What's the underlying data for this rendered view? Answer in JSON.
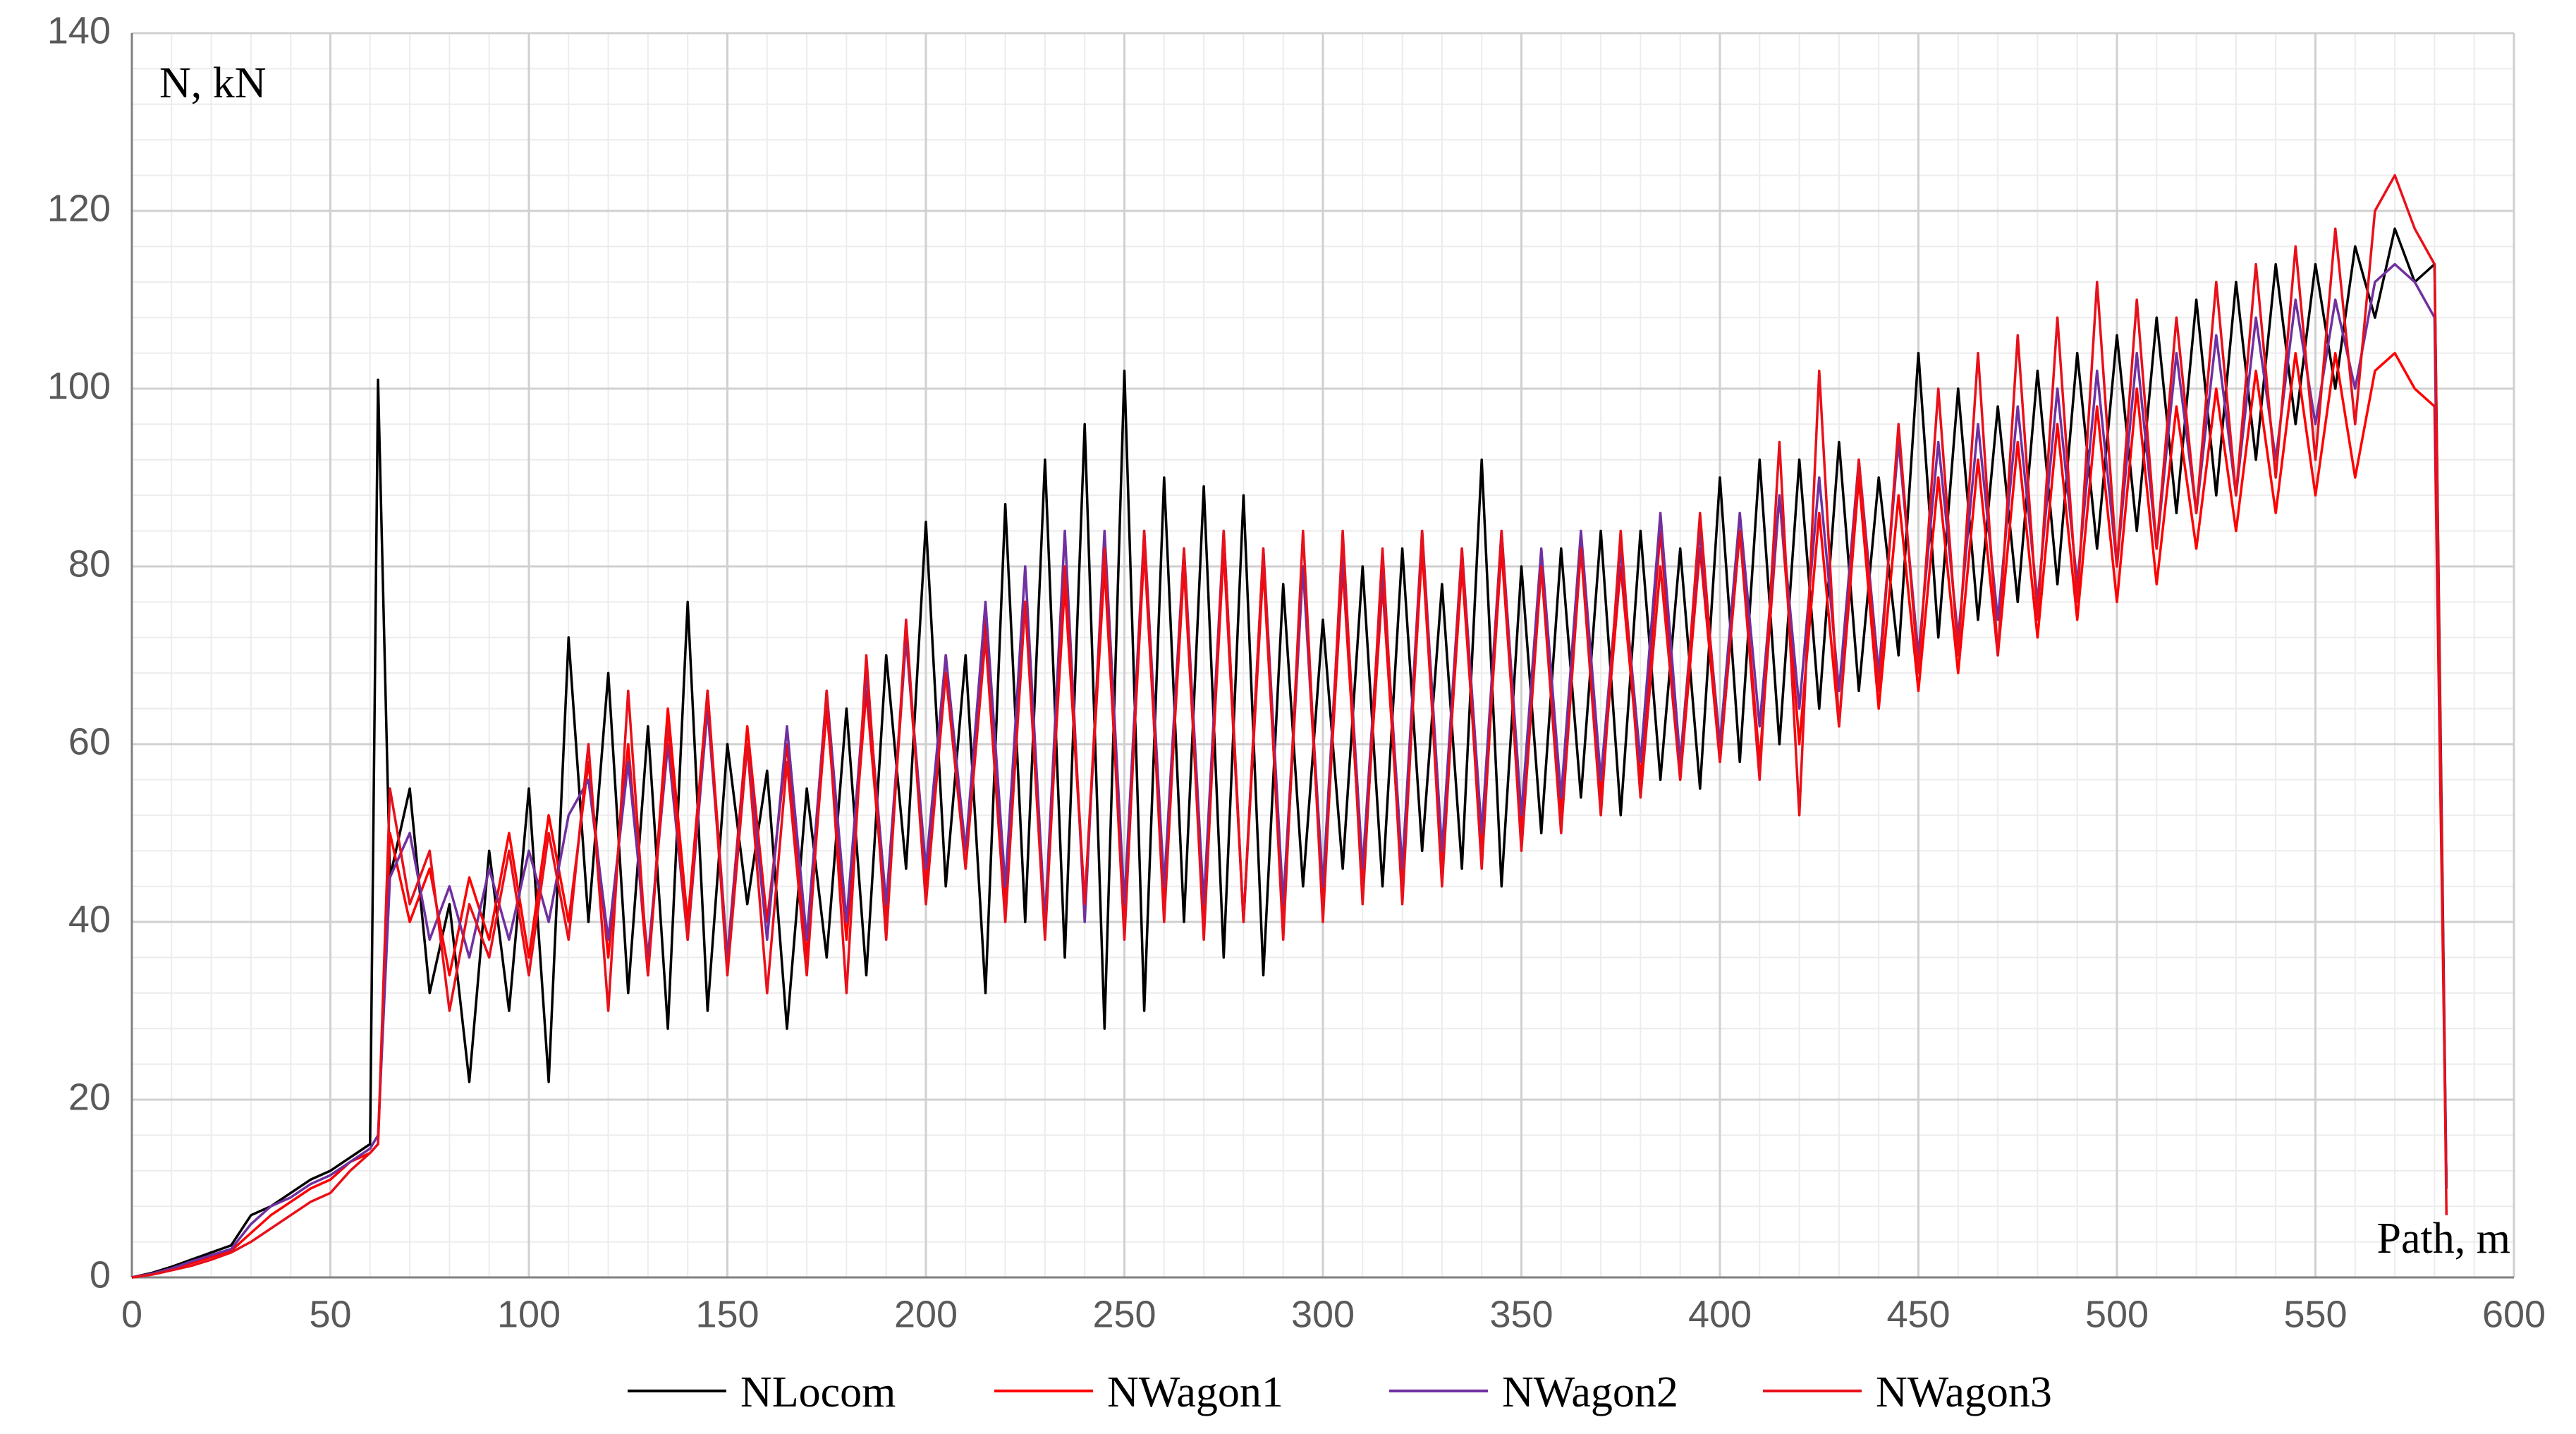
{
  "chart_data": {
    "type": "line",
    "y_label": "N, kN",
    "x_label": "Path, m",
    "x": [
      0,
      5,
      10,
      15,
      20,
      25,
      30,
      35,
      40,
      45,
      50,
      55,
      60,
      62,
      65,
      70,
      75,
      80,
      85,
      90,
      95,
      100,
      105,
      110,
      115,
      120,
      125,
      130,
      135,
      140,
      145,
      150,
      155,
      160,
      165,
      170,
      175,
      180,
      185,
      190,
      195,
      200,
      205,
      210,
      215,
      220,
      225,
      230,
      235,
      240,
      245,
      250,
      255,
      260,
      265,
      270,
      275,
      280,
      285,
      290,
      295,
      300,
      305,
      310,
      315,
      320,
      325,
      330,
      335,
      340,
      345,
      350,
      355,
      360,
      365,
      370,
      375,
      380,
      385,
      390,
      395,
      400,
      405,
      410,
      415,
      420,
      425,
      430,
      435,
      440,
      445,
      450,
      455,
      460,
      465,
      470,
      475,
      480,
      485,
      490,
      495,
      500,
      505,
      510,
      515,
      520,
      525,
      530,
      535,
      540,
      545,
      550,
      555,
      560,
      565,
      570,
      575,
      580,
      583
    ],
    "series": [
      {
        "name": "NLocom",
        "color": "#000000",
        "values": [
          0,
          0.5,
          1.2,
          2,
          2.8,
          3.6,
          7,
          8,
          9.5,
          11,
          12,
          13.5,
          15,
          101,
          45,
          55,
          32,
          42,
          22,
          48,
          30,
          55,
          22,
          72,
          40,
          68,
          32,
          62,
          28,
          76,
          30,
          60,
          42,
          57,
          28,
          55,
          36,
          64,
          34,
          70,
          46,
          85,
          44,
          70,
          32,
          87,
          40,
          92,
          36,
          96,
          28,
          102,
          30,
          90,
          40,
          89,
          36,
          88,
          34,
          78,
          44,
          74,
          46,
          80,
          44,
          82,
          48,
          78,
          46,
          92,
          44,
          80,
          50,
          82,
          54,
          84,
          52,
          84,
          56,
          82,
          55,
          90,
          58,
          92,
          60,
          92,
          64,
          94,
          66,
          90,
          70,
          104,
          72,
          100,
          74,
          98,
          76,
          102,
          78,
          104,
          82,
          106,
          84,
          108,
          86,
          110,
          88,
          112,
          92,
          114,
          96,
          114,
          100,
          116,
          108,
          118,
          112,
          114,
          10
        ]
      },
      {
        "name": "NWagon1",
        "color": "#ff0000",
        "values": [
          0,
          0.4,
          1,
          1.6,
          2.3,
          3,
          5,
          7,
          8.5,
          10,
          11,
          13,
          14,
          15,
          50,
          40,
          46,
          34,
          45,
          38,
          50,
          36,
          52,
          40,
          58,
          36,
          60,
          34,
          64,
          40,
          66,
          36,
          62,
          40,
          60,
          36,
          64,
          38,
          66,
          40,
          72,
          44,
          70,
          46,
          74,
          42,
          76,
          40,
          78,
          42,
          80,
          40,
          82,
          42,
          80,
          40,
          82,
          40,
          80,
          40,
          80,
          42,
          80,
          44,
          78,
          44,
          82,
          46,
          80,
          48,
          82,
          50,
          80,
          52,
          82,
          54,
          80,
          56,
          84,
          56,
          82,
          58,
          84,
          58,
          88,
          60,
          86,
          62,
          90,
          64,
          88,
          66,
          90,
          68,
          92,
          70,
          94,
          72,
          96,
          74,
          98,
          76,
          100,
          78,
          98,
          82,
          100,
          84,
          102,
          86,
          104,
          88,
          104,
          90,
          102,
          104,
          100,
          98,
          10
        ]
      },
      {
        "name": "NWagon2",
        "color": "#7030a0",
        "values": [
          0,
          0.4,
          1,
          1.8,
          2.5,
          3.2,
          6,
          8,
          9,
          10.5,
          11.5,
          13,
          14.5,
          16,
          45,
          50,
          38,
          44,
          36,
          46,
          38,
          48,
          40,
          52,
          56,
          38,
          58,
          36,
          60,
          38,
          64,
          36,
          60,
          38,
          62,
          38,
          66,
          40,
          68,
          42,
          72,
          46,
          70,
          48,
          76,
          44,
          80,
          40,
          84,
          40,
          84,
          42,
          84,
          44,
          82,
          42,
          84,
          40,
          82,
          42,
          80,
          44,
          82,
          46,
          80,
          46,
          84,
          48,
          82,
          50,
          84,
          52,
          82,
          54,
          84,
          56,
          82,
          58,
          86,
          58,
          84,
          60,
          86,
          62,
          88,
          64,
          90,
          66,
          92,
          68,
          94,
          70,
          94,
          72,
          96,
          74,
          98,
          76,
          100,
          78,
          102,
          80,
          104,
          82,
          104,
          86,
          106,
          88,
          108,
          92,
          110,
          96,
          110,
          100,
          112,
          114,
          112,
          108,
          10
        ]
      },
      {
        "name": "NWagon3",
        "color": "#e8101a",
        "values": [
          0,
          0.3,
          0.8,
          1.3,
          2,
          2.8,
          4,
          5.5,
          7,
          8.5,
          9.5,
          12,
          14,
          15,
          55,
          42,
          48,
          30,
          42,
          36,
          48,
          34,
          50,
          38,
          60,
          30,
          66,
          34,
          62,
          38,
          66,
          34,
          60,
          32,
          58,
          34,
          66,
          32,
          70,
          38,
          74,
          42,
          68,
          46,
          72,
          40,
          76,
          38,
          80,
          42,
          82,
          38,
          84,
          40,
          82,
          38,
          84,
          40,
          82,
          38,
          84,
          40,
          84,
          42,
          82,
          42,
          84,
          44,
          82,
          46,
          84,
          48,
          80,
          50,
          82,
          52,
          84,
          54,
          80,
          56,
          86,
          58,
          84,
          56,
          94,
          52,
          102,
          62,
          92,
          66,
          96,
          68,
          100,
          70,
          104,
          70,
          106,
          74,
          108,
          76,
          112,
          80,
          110,
          82,
          108,
          86,
          112,
          88,
          114,
          90,
          116,
          92,
          118,
          96,
          120,
          124,
          118,
          114,
          7
        ]
      }
    ],
    "xlim": [
      0,
      600
    ],
    "xticks": [
      0,
      50,
      100,
      150,
      200,
      250,
      300,
      350,
      400,
      450,
      500,
      550,
      600
    ],
    "ylim": [
      0,
      140
    ],
    "yticks": [
      0,
      20,
      40,
      60,
      80,
      100,
      120,
      140
    ],
    "grid": true,
    "legend": "bottom"
  }
}
